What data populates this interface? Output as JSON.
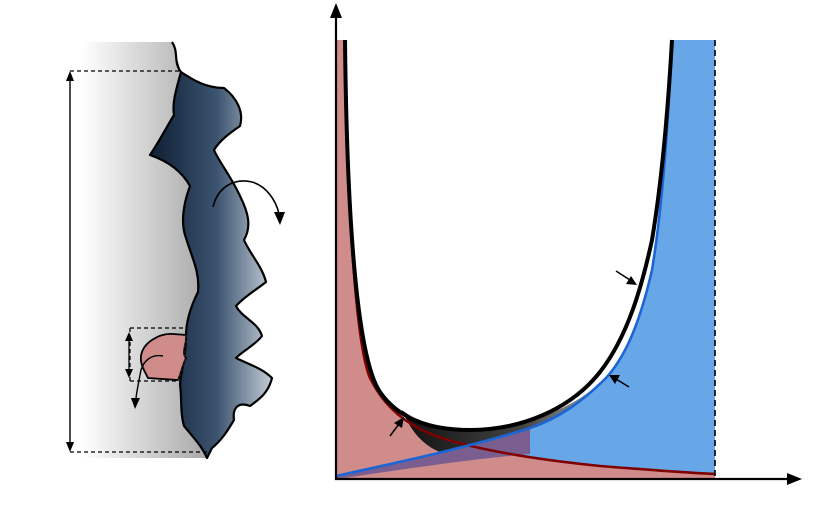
{
  "figure": {
    "left_panel": {
      "pore_wall_icon": "rough-pore-wall",
      "liquid_film_icon": "rough-liquid-film",
      "height_arrow_icon": "double-headed-vertical-arrow",
      "rotation_arrow_icon": "curved-arrow",
      "asperity_icon": "red-asperity-blob"
    },
    "right_panel": {
      "x_axis_icon": "arrow-right",
      "y_axis_icon": "arrow-up",
      "total_curve_icon": "black-u-curve",
      "red_curve_icon": "decreasing-red-curve",
      "blue_curve_icon": "increasing-blue-curve",
      "limit_line_icon": "dashed-vertical-line"
    },
    "colors": {
      "wall_gray": "#a8a8a8",
      "film_dark": "#0e1d33",
      "film_light": "#c3ccd6",
      "red_fill": "#d08b8b",
      "red_line": "#800000",
      "blue_fill": "#67a7e8",
      "blue_line": "#1b66d4",
      "overlap": "#7a5e8f"
    }
  }
}
